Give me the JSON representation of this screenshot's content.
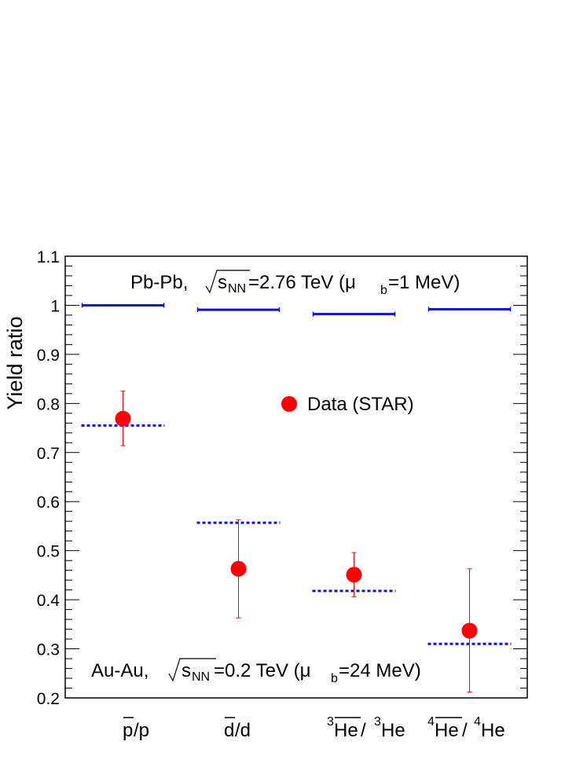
{
  "chart_data": {
    "type": "scatter",
    "ylabel": "Yield ratio",
    "ylim": [
      0.2,
      1.1
    ],
    "yticks": [
      "0.2",
      "0.3",
      "0.4",
      "0.5",
      "0.6",
      "0.7",
      "0.8",
      "0.9",
      "1",
      "1.1"
    ],
    "categories": [
      {
        "main": "p",
        "over": true,
        "rest": " /p",
        "sup1": "",
        "sup2": ""
      },
      {
        "main": "d",
        "over": true,
        "rest": " /d",
        "sup1": "",
        "sup2": ""
      },
      {
        "main": "He",
        "over": true,
        "rest": " /",
        "sup1": "3",
        "sup2": "3",
        "tail": "He"
      },
      {
        "main": "He",
        "over": true,
        "rest": " /",
        "sup1": "4",
        "sup2": "4",
        "tail": "He"
      }
    ],
    "model_lhc": {
      "name": "Pb-Pb, √sNN=2.76 TeV (μb=1 MeV)",
      "values": [
        1.0,
        0.991,
        0.982,
        0.992
      ],
      "color": "#1010dd"
    },
    "model_rhic": {
      "name": "Au-Au, √sNN=0.2 TeV (μb=24 MeV)",
      "values": [
        0.755,
        0.557,
        0.418,
        0.31
      ],
      "color": "#1010dd"
    },
    "data_star": {
      "name": "Data (STAR)",
      "values": [
        0.769,
        0.463,
        0.451,
        0.337
      ],
      "err_low": [
        0.055,
        0.1,
        0.045,
        0.125
      ],
      "err_high": [
        0.056,
        0.1,
        0.045,
        0.126
      ],
      "color": "#ff0000"
    },
    "annotation_top": {
      "pre": "Pb-Pb,",
      "sqrt": "s",
      "sub": "NN",
      "post1": "=2.76 TeV (μ",
      "mu_sub": "b",
      "post2": "=1 MeV)"
    },
    "annotation_bottom": {
      "pre": "Au-Au,",
      "sqrt": "s",
      "sub": "NN",
      "post1": "=0.2 TeV (μ",
      "mu_sub": "b",
      "post2": "=24 MeV)"
    },
    "legend": {
      "label": "Data (STAR)"
    }
  }
}
